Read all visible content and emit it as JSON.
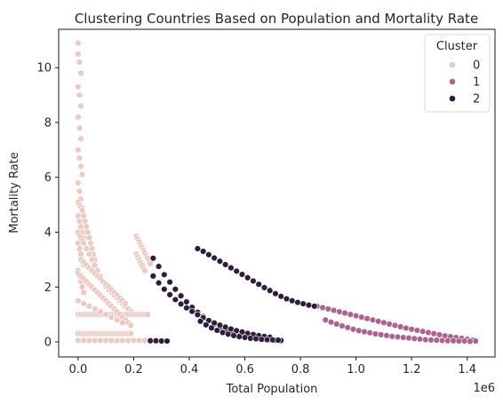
{
  "chart_data": {
    "type": "scatter",
    "title": "Clustering Countries Based on Population and Mortality Rate",
    "xlabel": "Total Population",
    "ylabel": "Mortality Rate",
    "x_offset_text": "1e6",
    "xlim": [
      -0.07,
      1.5
    ],
    "ylim": [
      -0.55,
      11.4
    ],
    "x_unit_multiplier": 1000000,
    "xticks": [
      0.0,
      0.2,
      0.4,
      0.6,
      0.8,
      1.0,
      1.2,
      1.4
    ],
    "xtick_labels": [
      "0.0",
      "0.2",
      "0.4",
      "0.6",
      "0.8",
      "1.0",
      "1.2",
      "1.4"
    ],
    "yticks": [
      0,
      2,
      4,
      6,
      8,
      10
    ],
    "ytick_labels": [
      "0",
      "2",
      "4",
      "6",
      "8",
      "10"
    ],
    "grid": false,
    "legend": {
      "title": "Cluster",
      "placement": "top-right",
      "entries": [
        {
          "label": "0",
          "color": "#eacac3"
        },
        {
          "label": "1",
          "color": "#ad6390"
        },
        {
          "label": "2",
          "color": "#2e1e3c"
        }
      ]
    },
    "series": [
      {
        "name": "0",
        "color": "#eacac3",
        "x": [
          0.0,
          0.0,
          0.005,
          0.01,
          0.0,
          0.005,
          0.01,
          0.0,
          0.005,
          0.01,
          0.0,
          0.005,
          0.01,
          0.015,
          0.0,
          0.005,
          0.01,
          0.015,
          0.0,
          0.005,
          0.01,
          0.015,
          0.02,
          0.0,
          0.005,
          0.01,
          0.015,
          0.02,
          0.0,
          0.005,
          0.01,
          0.015,
          0.02,
          0.0,
          0.005,
          0.01,
          0.015,
          0.02,
          0.025,
          0.03,
          0.035,
          0.04,
          0.045,
          0.05,
          0.055,
          0.06,
          0.0,
          0.005,
          0.01,
          0.015,
          0.02,
          0.03,
          0.04,
          0.05,
          0.06,
          0.07,
          0.08,
          0.09,
          0.1,
          0.11,
          0.12,
          0.13,
          0.14,
          0.15,
          0.16,
          0.17,
          0.18,
          0.19,
          0.2,
          0.0,
          0.01,
          0.02,
          0.03,
          0.04,
          0.05,
          0.06,
          0.07,
          0.08,
          0.09,
          0.1,
          0.11,
          0.12,
          0.13,
          0.14,
          0.15,
          0.16,
          0.17,
          0.18,
          0.19,
          0.2,
          0.21,
          0.22,
          0.23,
          0.24,
          0.25,
          0.0,
          0.02,
          0.04,
          0.06,
          0.08,
          0.1,
          0.12,
          0.14,
          0.16,
          0.18,
          0.2,
          0.22,
          0.24,
          0.26,
          0.0,
          0.01,
          0.02,
          0.03,
          0.04,
          0.05,
          0.06,
          0.07,
          0.08,
          0.09,
          0.1,
          0.11,
          0.12,
          0.13,
          0.14,
          0.15,
          0.16,
          0.17,
          0.18,
          0.19,
          0.21,
          0.215,
          0.22,
          0.225,
          0.23,
          0.235,
          0.24,
          0.245,
          0.25,
          0.255,
          0.26,
          0.21,
          0.215,
          0.22,
          0.225,
          0.23,
          0.235,
          0.24,
          0.01,
          0.02,
          0.03,
          0.04,
          0.05,
          0.06,
          0.07,
          0.08,
          0.09,
          0.1,
          0.11,
          0.12,
          0.13,
          0.14,
          0.15,
          0.16,
          0.17,
          0.0,
          0.01,
          0.02,
          0.03,
          0.04,
          0.05,
          0.06,
          0.07,
          0.08,
          0.09,
          0.1,
          0.11,
          0.12,
          0.13,
          0.14,
          0.15,
          0.16,
          0.17,
          0.18,
          0.19,
          0.0,
          0.02,
          0.04,
          0.06,
          0.08,
          0.1,
          0.12,
          0.14,
          0.16
        ],
        "y": [
          10.9,
          10.5,
          10.2,
          9.8,
          9.3,
          9.0,
          8.6,
          8.2,
          7.8,
          7.4,
          7.0,
          6.7,
          6.4,
          6.1,
          5.8,
          5.5,
          5.2,
          4.9,
          4.6,
          4.4,
          4.2,
          4.0,
          3.8,
          3.6,
          3.4,
          3.2,
          3.0,
          2.8,
          2.6,
          2.4,
          2.2,
          2.0,
          1.8,
          5.1,
          5.0,
          4.9,
          4.8,
          4.6,
          4.4,
          4.2,
          4.0,
          3.8,
          3.6,
          3.4,
          3.2,
          3.0,
          4.0,
          3.9,
          3.8,
          3.7,
          3.6,
          3.4,
          3.2,
          3.0,
          2.8,
          2.6,
          2.4,
          2.2,
          2.0,
          1.9,
          1.8,
          1.7,
          1.6,
          1.5,
          1.4,
          1.3,
          1.2,
          1.1,
          1.0,
          1.0,
          1.0,
          1.0,
          1.0,
          1.0,
          1.0,
          1.0,
          1.0,
          1.0,
          1.0,
          1.0,
          1.0,
          1.0,
          1.0,
          1.0,
          1.0,
          1.0,
          1.0,
          1.0,
          1.0,
          1.0,
          1.0,
          1.0,
          1.0,
          1.0,
          1.0,
          0.05,
          0.05,
          0.05,
          0.05,
          0.05,
          0.05,
          0.05,
          0.05,
          0.05,
          0.05,
          0.05,
          0.05,
          0.05,
          0.05,
          0.3,
          0.3,
          0.3,
          0.3,
          0.3,
          0.3,
          0.3,
          0.3,
          0.3,
          0.3,
          0.3,
          0.3,
          0.3,
          0.3,
          0.3,
          0.3,
          0.3,
          0.3,
          0.3,
          0.3,
          3.85,
          3.75,
          3.65,
          3.55,
          3.45,
          3.35,
          3.25,
          3.15,
          3.05,
          2.95,
          2.85,
          3.2,
          3.1,
          3.0,
          2.9,
          2.8,
          2.7,
          2.6,
          3.0,
          2.9,
          2.8,
          2.7,
          2.6,
          2.5,
          2.4,
          2.3,
          2.2,
          2.1,
          2.0,
          1.9,
          1.8,
          1.7,
          1.6,
          1.5,
          1.4,
          2.5,
          2.4,
          2.3,
          2.2,
          2.1,
          2.0,
          1.9,
          1.8,
          1.7,
          1.6,
          1.5,
          1.4,
          1.3,
          1.2,
          1.1,
          1.0,
          0.9,
          0.8,
          0.7,
          0.6,
          1.5,
          1.4,
          1.3,
          1.2,
          1.1,
          1.0,
          0.9,
          0.8,
          0.7
        ]
      },
      {
        "name": "1",
        "color": "#ad6390",
        "x": [
          0.86,
          0.88,
          0.9,
          0.92,
          0.94,
          0.96,
          0.98,
          1.0,
          1.02,
          1.04,
          1.06,
          1.08,
          1.1,
          1.12,
          1.14,
          1.16,
          1.18,
          1.2,
          1.22,
          1.24,
          1.26,
          1.28,
          1.3,
          1.32,
          1.34,
          1.36,
          1.38,
          1.4,
          1.42,
          1.43,
          0.89,
          0.91,
          0.93,
          0.95,
          0.97,
          0.99,
          1.01,
          1.03,
          1.05,
          1.07,
          1.09,
          1.11,
          1.13,
          1.15,
          1.17,
          1.19,
          1.21,
          1.23,
          1.25,
          1.27,
          1.29,
          1.31,
          1.33,
          1.35,
          1.37,
          1.39,
          1.41
        ],
        "y": [
          1.3,
          1.25,
          1.2,
          1.15,
          1.1,
          1.05,
          1.0,
          0.95,
          0.9,
          0.85,
          0.8,
          0.75,
          0.7,
          0.65,
          0.6,
          0.55,
          0.5,
          0.46,
          0.42,
          0.38,
          0.34,
          0.3,
          0.26,
          0.22,
          0.19,
          0.16,
          0.13,
          0.1,
          0.06,
          0.03,
          0.8,
          0.72,
          0.65,
          0.58,
          0.52,
          0.46,
          0.41,
          0.37,
          0.33,
          0.29,
          0.26,
          0.23,
          0.2,
          0.18,
          0.16,
          0.14,
          0.12,
          0.1,
          0.08,
          0.07,
          0.06,
          0.05,
          0.04,
          0.04,
          0.03,
          0.03,
          0.02
        ]
      },
      {
        "name": "2",
        "color": "#2e1e3c",
        "x": [
          0.43,
          0.45,
          0.47,
          0.49,
          0.51,
          0.53,
          0.55,
          0.57,
          0.59,
          0.61,
          0.63,
          0.65,
          0.67,
          0.69,
          0.71,
          0.73,
          0.75,
          0.77,
          0.79,
          0.81,
          0.83,
          0.85,
          0.27,
          0.29,
          0.31,
          0.33,
          0.35,
          0.37,
          0.39,
          0.41,
          0.43,
          0.45,
          0.47,
          0.49,
          0.51,
          0.53,
          0.55,
          0.57,
          0.59,
          0.61,
          0.63,
          0.65,
          0.67,
          0.69,
          0.71,
          0.73,
          0.27,
          0.29,
          0.31,
          0.33,
          0.35,
          0.37,
          0.39,
          0.41,
          0.43,
          0.45,
          0.47,
          0.49,
          0.51,
          0.53,
          0.55,
          0.57,
          0.59,
          0.61,
          0.63,
          0.65,
          0.67,
          0.69,
          0.44,
          0.46,
          0.48,
          0.5,
          0.52,
          0.54,
          0.56,
          0.58,
          0.6,
          0.62,
          0.64,
          0.66,
          0.68,
          0.7,
          0.72,
          0.26,
          0.28,
          0.3,
          0.32
        ],
        "y": [
          3.4,
          3.3,
          3.18,
          3.06,
          2.94,
          2.82,
          2.7,
          2.58,
          2.46,
          2.34,
          2.22,
          2.1,
          1.98,
          1.87,
          1.76,
          1.66,
          1.57,
          1.5,
          1.44,
          1.39,
          1.34,
          1.3,
          3.05,
          2.75,
          2.45,
          2.18,
          1.92,
          1.68,
          1.46,
          1.26,
          1.08,
          0.92,
          0.78,
          0.65,
          0.54,
          0.45,
          0.37,
          0.3,
          0.24,
          0.19,
          0.15,
          0.12,
          0.1,
          0.08,
          0.06,
          0.05,
          2.4,
          2.15,
          1.92,
          1.72,
          1.54,
          1.38,
          1.24,
          1.11,
          0.99,
          0.88,
          0.78,
          0.69,
          0.61,
          0.54,
          0.47,
          0.41,
          0.36,
          0.31,
          0.27,
          0.23,
          0.2,
          0.17,
          0.75,
          0.62,
          0.51,
          0.42,
          0.34,
          0.28,
          0.23,
          0.19,
          0.16,
          0.13,
          0.11,
          0.09,
          0.08,
          0.07,
          0.06,
          0.04,
          0.04,
          0.03,
          0.03
        ]
      }
    ]
  }
}
